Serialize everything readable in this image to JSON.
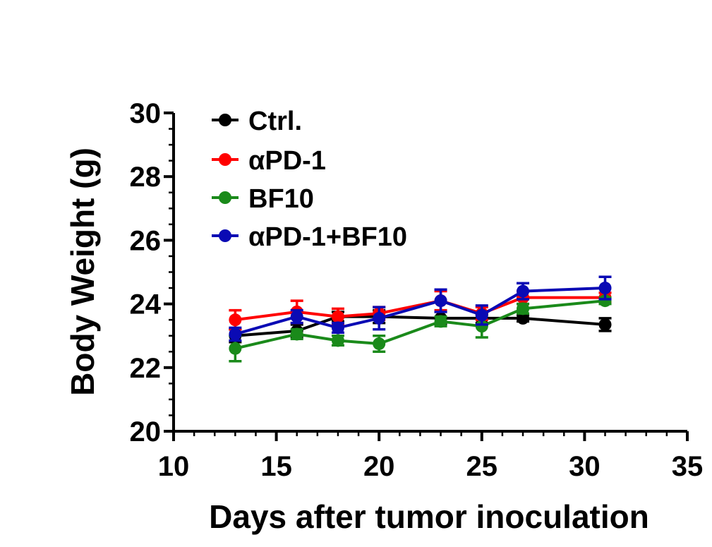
{
  "chart_data": {
    "type": "line",
    "title": "",
    "xlabel": "Days after tumor inoculation",
    "ylabel": "Body Weight (g)",
    "xlim": [
      10,
      35
    ],
    "ylim": [
      20,
      30
    ],
    "xticks": [
      "10",
      "15",
      "20",
      "25",
      "30",
      "35"
    ],
    "yticks": [
      "20",
      "22",
      "24",
      "26",
      "28",
      "30"
    ],
    "legend_position": "top-left",
    "series": [
      {
        "name": "Ctrl.",
        "color": "#000000",
        "x": [
          13,
          16,
          18,
          20,
          23,
          25,
          27,
          31
        ],
        "y": [
          23.0,
          23.15,
          23.6,
          23.6,
          23.55,
          23.55,
          23.55,
          23.35
        ],
        "err": [
          0.2,
          0.2,
          0.15,
          0.2,
          0.2,
          0.15,
          0.1,
          0.2
        ]
      },
      {
        "name": "αPD-1",
        "color": "#ff0000",
        "x": [
          13,
          16,
          18,
          20,
          23,
          25,
          27,
          31
        ],
        "y": [
          23.5,
          23.75,
          23.6,
          23.7,
          24.1,
          23.7,
          24.2,
          24.2
        ],
        "err": [
          0.3,
          0.35,
          0.25,
          0.2,
          0.3,
          0.2,
          0.2,
          0.15
        ]
      },
      {
        "name": "BF10",
        "color": "#1a8a1a",
        "x": [
          13,
          16,
          18,
          20,
          23,
          25,
          27,
          31
        ],
        "y": [
          22.6,
          23.05,
          22.85,
          22.75,
          23.45,
          23.3,
          23.85,
          24.1
        ],
        "err": [
          0.4,
          0.15,
          0.15,
          0.25,
          0.15,
          0.35,
          0.15,
          0.1
        ]
      },
      {
        "name": "αPD-1+BF10",
        "color": "#0a0ab4",
        "x": [
          13,
          16,
          18,
          20,
          23,
          25,
          27,
          31
        ],
        "y": [
          23.05,
          23.6,
          23.25,
          23.55,
          24.1,
          23.65,
          24.4,
          24.5
        ],
        "err": [
          0.2,
          0.2,
          0.15,
          0.35,
          0.35,
          0.3,
          0.25,
          0.35
        ]
      }
    ]
  }
}
